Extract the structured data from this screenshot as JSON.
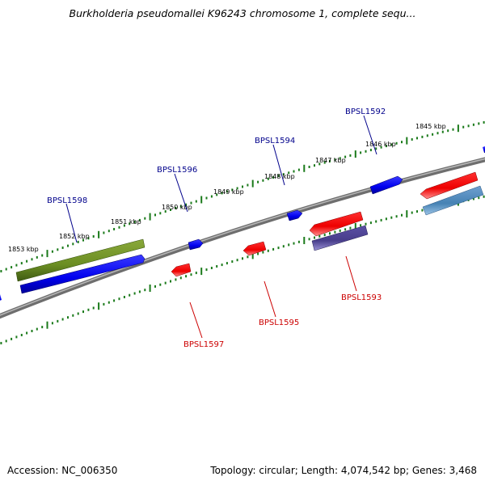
{
  "title": "Burkholderia pseudomallei K96243 chromosome 1, complete sequ...",
  "footer": {
    "accession": "Accession: NC_006350",
    "summary": "Topology: circular; Length: 4,074,542 bp; Genes: 3,468"
  },
  "kbp_labels": [
    "1853 kbp",
    "1852 kbp",
    "1851 kbp",
    "1850 kbp",
    "1849 kbp",
    "1848 kbp",
    "1847 kbp",
    "1846 kbp",
    "1845 kbp"
  ],
  "gene_labels": {
    "top": [
      "BPSL1598",
      "BPSL1596",
      "BPSL1594",
      "BPSL1592"
    ],
    "bottom": [
      "BPSL1597",
      "BPSL1595",
      "BPSL1593"
    ]
  },
  "colors": {
    "backbone": "#808080",
    "tick": "#1a7a1a",
    "forward_gene": "#0000ff",
    "reverse_gene": "#ff0000",
    "top_label": "#00008b",
    "bottom_label": "#cc0000",
    "cds_olive": "#6b8e23",
    "cds_purple": "#483d8b",
    "cds_steel": "#4682b4"
  }
}
